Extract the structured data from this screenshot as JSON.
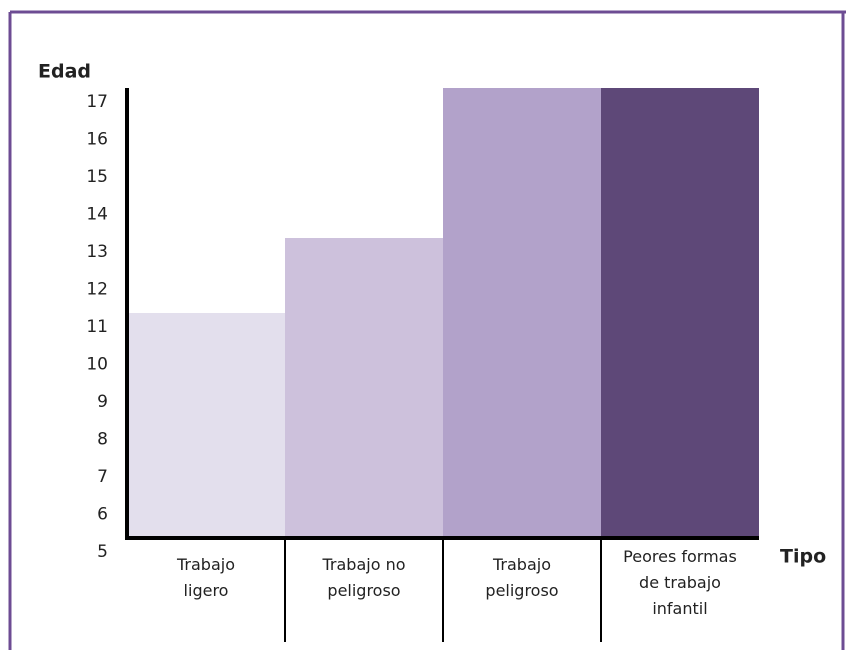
{
  "chart_data": {
    "type": "bar",
    "y_label": "Edad",
    "x_label": "Tipo",
    "categories": [
      "Trabajo ligero",
      "Trabajo no peligroso",
      "Trabajo peligroso",
      "Peores formas de trabajo infantil"
    ],
    "values": [
      11,
      13,
      17,
      17
    ],
    "colors": [
      "#e3dfed",
      "#cdc1dc",
      "#b2a2ca",
      "#5e4878"
    ],
    "ylim": [
      5,
      17
    ],
    "yticks": [
      5,
      6,
      7,
      8,
      9,
      10,
      11,
      12,
      13,
      14,
      15,
      16,
      17
    ]
  }
}
